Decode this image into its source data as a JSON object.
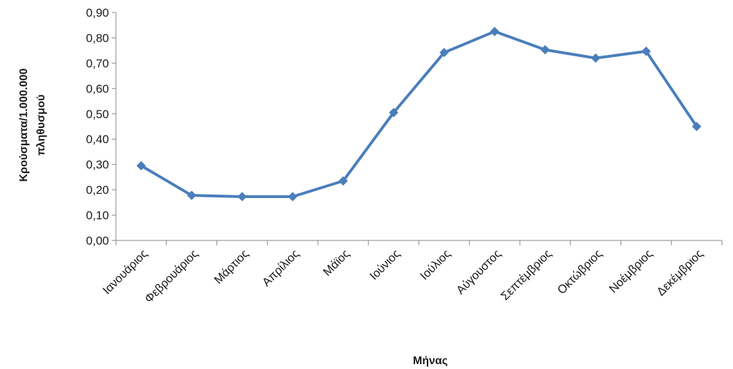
{
  "chart_data": {
    "type": "line",
    "title": "",
    "xlabel": "Μήνας",
    "ylabel_line1": "Κρούσματα/1.000.000",
    "ylabel_line2": "πληθυσμού",
    "categories": [
      "Ιανουάριος",
      "Φεβρουάριος",
      "Μάρτιος",
      "Απρίλιος",
      "Μάϊος",
      "Ιούνιος",
      "Ιούλιος",
      "Αύγουστος",
      "Σεπτέμβριος",
      "Οκτώβριος",
      "Νοέμβριος",
      "Δεκέμβριος"
    ],
    "series": [
      {
        "values": [
          0.295,
          0.178,
          0.173,
          0.173,
          0.235,
          0.505,
          0.742,
          0.825,
          0.753,
          0.72,
          0.747,
          0.45
        ],
        "color": "#4a7ebb"
      }
    ],
    "ylim": [
      0,
      0.9
    ],
    "yticks": [
      "0,00",
      "0,10",
      "0,20",
      "0,30",
      "0,40",
      "0,50",
      "0,60",
      "0,70",
      "0,80",
      "0,90"
    ],
    "grid": false,
    "legend": "none"
  }
}
